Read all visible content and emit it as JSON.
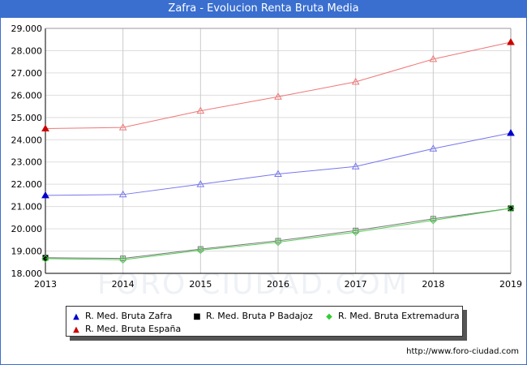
{
  "window": {
    "title": "Zafra - Evolucion Renta Bruta Media",
    "source": "http://www.foro-ciudad.com",
    "watermark": "FORO-CIUDAD.COM"
  },
  "legend": {
    "items": [
      {
        "label": "R. Med. Bruta Zafra",
        "marker": "▲",
        "color": "#0000cc"
      },
      {
        "label": "R. Med. Bruta P Badajoz",
        "marker": "■",
        "color": "#000000"
      },
      {
        "label": "R. Med. Bruta Extremadura",
        "marker": "◆",
        "color": "#33cc33"
      },
      {
        "label": "R. Med. Bruta España",
        "marker": "▲",
        "color": "#cc0000"
      }
    ]
  },
  "chart_data": {
    "type": "line",
    "title": "Zafra - Evolucion Renta Bruta Media",
    "x": [
      2013,
      2014,
      2015,
      2016,
      2017,
      2018,
      2019
    ],
    "ylim": [
      18000,
      29000
    ],
    "y_ticks": [
      "18.000",
      "19.000",
      "20.000",
      "21.000",
      "22.000",
      "23.000",
      "24.000",
      "25.000",
      "26.000",
      "27.000",
      "28.000",
      "29.000"
    ],
    "x_ticks": [
      "2013",
      "2014",
      "2015",
      "2016",
      "2017",
      "2018",
      "2019"
    ],
    "grid": true,
    "legend_position": "bottom",
    "series": [
      {
        "name": "R. Med. Bruta Zafra",
        "color": "#7777ee",
        "marker_color": "#0000cc",
        "values": [
          21500,
          21540,
          22000,
          22460,
          22800,
          23600,
          24300
        ]
      },
      {
        "name": "R. Med. Bruta P Badajoz",
        "color": "#777777",
        "marker_color": "#000000",
        "values": [
          18700,
          18670,
          19090,
          19460,
          19920,
          20450,
          20920
        ]
      },
      {
        "name": "R. Med. Bruta Extremadura",
        "color": "#55cc55",
        "marker_color": "#33cc33",
        "values": [
          18660,
          18610,
          19040,
          19400,
          19850,
          20380,
          20920
        ]
      },
      {
        "name": "R. Med. Bruta España",
        "color": "#ee7777",
        "marker_color": "#cc0000",
        "values": [
          24500,
          24550,
          25300,
          25930,
          26600,
          27620,
          28380
        ]
      }
    ]
  }
}
